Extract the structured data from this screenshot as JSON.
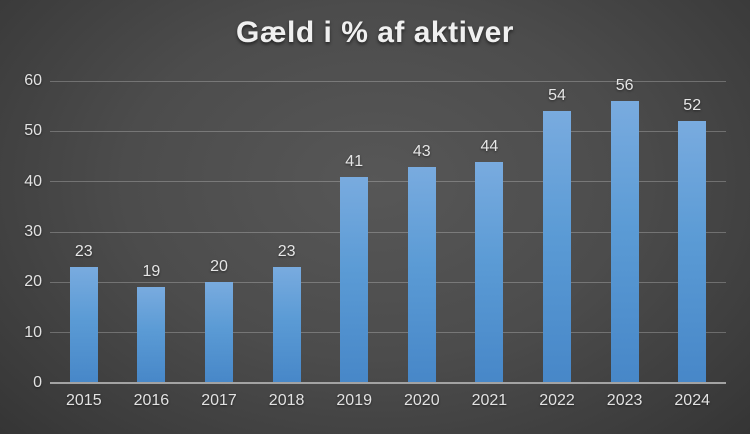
{
  "chart_data": {
    "type": "bar",
    "title": "Gæld i % af aktiver",
    "categories": [
      "2015",
      "2016",
      "2017",
      "2018",
      "2019",
      "2020",
      "2021",
      "2022",
      "2023",
      "2024"
    ],
    "values": [
      23,
      19,
      20,
      23,
      41,
      43,
      44,
      54,
      56,
      52
    ],
    "xlabel": "",
    "ylabel": "",
    "ylim": [
      0,
      60
    ],
    "yticks": [
      0,
      10,
      20,
      30,
      40,
      50,
      60
    ],
    "grid": "horizontal",
    "legend_position": "none",
    "data_labels": "above-bars",
    "colors": {
      "bar_top": "#79abdf",
      "bar_mid": "#5b9bd5",
      "bar_bottom": "#4787c8",
      "background_center": "#575757",
      "background_edge": "#212121",
      "gridline": "rgba(255,255,255,0.24)",
      "axis_line": "#a3a3a3",
      "text": "#e2e2e2",
      "title_text": "#f0f0f0"
    }
  }
}
